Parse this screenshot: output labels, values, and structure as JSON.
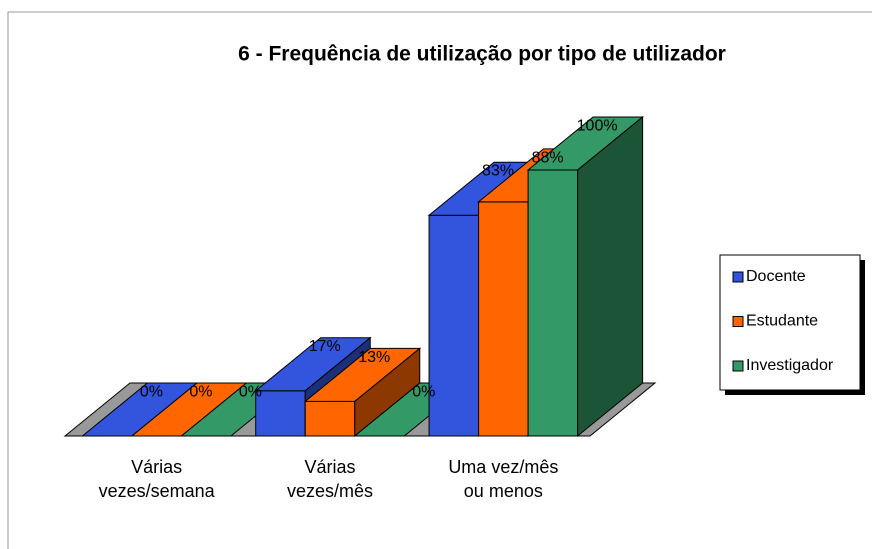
{
  "chart_data": {
    "type": "bar3d",
    "title": "6 - Frequência de utilização por tipo de utilizador",
    "categories": [
      "Várias\nvezes/semana",
      "Várias\nvezes/mês",
      "Uma vez/mês\nou menos"
    ],
    "series": [
      {
        "name": "Docente",
        "color": "#3355dd",
        "values": [
          0,
          17,
          83
        ],
        "value_labels": [
          "0%",
          "17%",
          "83%"
        ]
      },
      {
        "name": "Estudante",
        "color": "#ff6600",
        "values": [
          0,
          13,
          88
        ],
        "value_labels": [
          "0%",
          "13%",
          "88%"
        ]
      },
      {
        "name": "Investigador",
        "color": "#339966",
        "values": [
          0,
          0,
          100
        ],
        "value_labels": [
          "0%",
          "0%",
          "100%"
        ]
      }
    ],
    "ylim": [
      0,
      100
    ],
    "legend": "right"
  }
}
